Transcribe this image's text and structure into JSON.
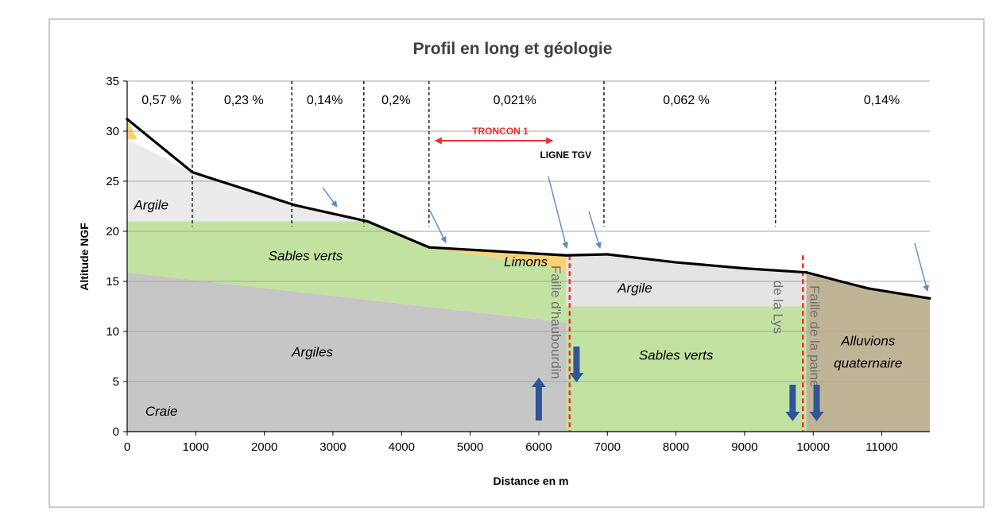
{
  "chart_data": {
    "type": "area",
    "title": "Profil en long et géologie",
    "xlabel": "Distance  en m",
    "ylabel": "Altitude NGF",
    "xlim": [
      0,
      11700
    ],
    "ylim": [
      0,
      35
    ],
    "x_ticks": [
      0,
      1000,
      2000,
      3000,
      4000,
      5000,
      6000,
      7000,
      8000,
      9000,
      10000,
      11000
    ],
    "x_tick_labels": [
      "0",
      "1000",
      "2000",
      "3000",
      "4000",
      "5000",
      "6000",
      "7000",
      "8000",
      "9000",
      "10000",
      "11000"
    ],
    "y_ticks": [
      0,
      5,
      10,
      15,
      20,
      25,
      30,
      35
    ],
    "y_tick_labels": [
      "0",
      "5",
      "10",
      "15",
      "20",
      "25",
      "30",
      "35"
    ],
    "grid": "horizontal",
    "profile": {
      "name": "Profil en long",
      "x": [
        0,
        950,
        2450,
        3500,
        4400,
        6400,
        7000,
        8000,
        9000,
        9900,
        10400,
        10800,
        11700
      ],
      "y": [
        31.2,
        25.9,
        22.6,
        21.0,
        18.4,
        17.6,
        17.7,
        16.9,
        16.3,
        15.9,
        15.0,
        14.3,
        13.3
      ]
    },
    "slope_breaks": [
      950,
      2400,
      3450,
      4400,
      6950,
      9450
    ],
    "slopes": [
      {
        "label": "0,57 %",
        "x": 500
      },
      {
        "label": "0,23  %",
        "x": 1700
      },
      {
        "label": "0,14%",
        "x": 2880
      },
      {
        "label": "0,2%",
        "x": 3920
      },
      {
        "label": "0,021%",
        "x": 5650
      },
      {
        "label": "0,062 %",
        "x": 8150
      },
      {
        "label": "0,14%",
        "x": 11000
      }
    ],
    "layers": [
      {
        "name": "Craie",
        "color": "#66CCF0",
        "x": [
          0,
          0,
          4300
        ],
        "y": [
          0,
          5,
          0
        ],
        "label_x": 500,
        "label_y": 1.6
      },
      {
        "name": "Argiles",
        "color": "#C6C6C6",
        "x": [
          0,
          4300,
          6400,
          6400,
          0
        ],
        "y": [
          0,
          0,
          0,
          10.9,
          15.9
        ],
        "label_x": 2700,
        "label_y": 7.5
      },
      {
        "name": "Sables verts",
        "color": "#C2E2A2",
        "x": [
          0,
          3500,
          4400,
          6000,
          6400,
          6400,
          0
        ],
        "y": [
          21.0,
          21.0,
          18.4,
          16.7,
          15.9,
          10.9,
          15.9
        ],
        "label_x": 2600,
        "label_y": 17.1
      },
      {
        "name": "Argile",
        "color": "#EBEBEB",
        "x": [
          0,
          950,
          2450,
          3500,
          0
        ],
        "y": [
          29.2,
          25.9,
          22.6,
          21.0,
          21.0
        ],
        "label_x": 350,
        "label_y": 22.2
      },
      {
        "name": "",
        "color": "#FAD276",
        "x": [
          0,
          150,
          0
        ],
        "y": [
          31.1,
          29.2,
          29.2
        ]
      },
      {
        "name": "Limons",
        "color": "#FAD276",
        "x": [
          4400,
          6400,
          6400,
          6000
        ],
        "y": [
          18.4,
          17.6,
          15.9,
          16.7
        ],
        "label_x": 5810,
        "label_y": 16.5
      },
      {
        "name": "Argile",
        "color": "#E4E4E4",
        "x": [
          6400,
          7000,
          8000,
          9000,
          9900,
          9900,
          6400
        ],
        "y": [
          17.6,
          17.7,
          16.9,
          16.3,
          15.9,
          12.5,
          12.5
        ],
        "label_x": 7400,
        "label_y": 13.9
      },
      {
        "name": "Sables verts",
        "color": "#C2E2A2",
        "x": [
          6400,
          9900,
          9900,
          6400
        ],
        "y": [
          12.5,
          12.5,
          0,
          0
        ],
        "label_x": 8000,
        "label_y": 7.2
      },
      {
        "name": "Alluvions",
        "color": "#C0B496",
        "x": [
          9900,
          10400,
          10800,
          11700,
          11700,
          9900
        ],
        "y": [
          15.9,
          15.0,
          14.3,
          13.3,
          0,
          0
        ],
        "label_x": 10800,
        "label_y": 8.6
      },
      {
        "name": "quaternaire",
        "color": "#C0B496",
        "label_x": 10800,
        "label_y": 6.4
      }
    ],
    "faults": [
      {
        "name": "Faille d'haubourdin",
        "label": "Faille d'haubourdin",
        "x": 6450,
        "color": "#E8322D"
      },
      {
        "name": "Faille de la plaine de la Lys",
        "label_1": "Faille de la paine",
        "label_2": "de la Lys",
        "x": 9850,
        "color": "#E8322D"
      }
    ],
    "annotations": {
      "troncon": {
        "label": "TRONCON 1",
        "x_from": 4400,
        "x_to": 6200,
        "color": "#E8322D"
      },
      "ligne_tgv": {
        "label": "LIGNE TGV",
        "x": 6450
      },
      "movement_arrows": [
        {
          "direction": "up",
          "x": 6000
        },
        {
          "direction": "down",
          "x": 6550
        },
        {
          "direction": "down",
          "x": 9700
        },
        {
          "direction": "down",
          "x": 10050
        }
      ]
    },
    "colors": {
      "profile": "#000000",
      "grid": "#A6A6A6",
      "arrow": "#5B8BC4",
      "movement": "#2F5597"
    }
  }
}
